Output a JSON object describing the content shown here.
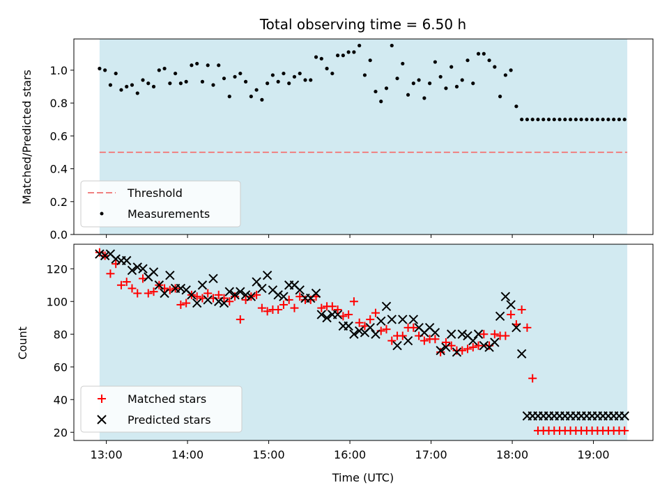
{
  "chart_data": [
    {
      "type": "scatter",
      "title": "Total observing time = 6.50 h",
      "ylabel": "Matched/Predicted stars",
      "xlabel": "",
      "xlim": [
        "12:36",
        "19:44"
      ],
      "ylim": [
        0,
        1.19
      ],
      "yticks": [
        "0.0",
        "0.2",
        "0.4",
        "0.6",
        "0.8",
        "1.0"
      ],
      "observing_window": [
        "12:55",
        "19:25"
      ],
      "observing_window_color": "#add8e6",
      "threshold": {
        "label": "Threshold",
        "value": 0.5,
        "color": "#f08080",
        "style": "dashed"
      },
      "series": [
        {
          "name": "Measurements",
          "marker": "dot",
          "color": "#000000",
          "x": [
            "12:55",
            "12:59",
            "13:03",
            "13:07",
            "13:11",
            "13:15",
            "13:19",
            "13:23",
            "13:27",
            "13:31",
            "13:35",
            "13:39",
            "13:43",
            "13:47",
            "13:51",
            "13:55",
            "13:59",
            "14:03",
            "14:07",
            "14:11",
            "14:15",
            "14:19",
            "14:23",
            "14:27",
            "14:31",
            "14:35",
            "14:39",
            "14:43",
            "14:47",
            "14:51",
            "14:55",
            "14:59",
            "15:03",
            "15:07",
            "15:11",
            "15:15",
            "15:19",
            "15:23",
            "15:27",
            "15:31",
            "15:35",
            "15:39",
            "15:43",
            "15:47",
            "15:51",
            "15:55",
            "15:59",
            "16:03",
            "16:07",
            "16:11",
            "16:15",
            "16:19",
            "16:23",
            "16:27",
            "16:31",
            "16:35",
            "16:39",
            "16:43",
            "16:47",
            "16:51",
            "16:55",
            "16:59",
            "17:03",
            "17:07",
            "17:11",
            "17:15",
            "17:19",
            "17:23",
            "17:27",
            "17:31",
            "17:35",
            "17:39",
            "17:43",
            "17:47",
            "17:51",
            "17:55",
            "17:59",
            "18:03",
            "18:07",
            "18:11",
            "18:15",
            "18:19",
            "18:23",
            "18:27",
            "18:31",
            "18:35",
            "18:39",
            "18:43",
            "18:47",
            "18:51",
            "18:55",
            "18:59",
            "19:03",
            "19:07",
            "19:11",
            "19:15",
            "19:19",
            "19:23"
          ],
          "y": [
            1.01,
            1.0,
            0.91,
            0.98,
            0.88,
            0.9,
            0.91,
            0.86,
            0.94,
            0.92,
            0.9,
            1.0,
            1.01,
            0.92,
            0.98,
            0.92,
            0.93,
            1.03,
            1.04,
            0.93,
            1.03,
            0.91,
            1.03,
            0.95,
            0.84,
            0.96,
            0.98,
            0.93,
            0.84,
            0.88,
            0.82,
            0.92,
            0.97,
            0.93,
            0.98,
            0.92,
            0.96,
            0.98,
            0.94,
            0.94,
            1.08,
            1.07,
            1.01,
            0.98,
            1.09,
            1.09,
            1.11,
            1.11,
            1.15,
            0.97,
            1.06,
            0.87,
            0.81,
            0.89,
            1.15,
            0.95,
            1.04,
            0.85,
            0.92,
            0.94,
            0.83,
            0.92,
            1.05,
            0.96,
            0.89,
            1.02,
            0.9,
            0.94,
            1.06,
            0.92,
            1.1,
            1.1,
            1.06,
            1.02,
            0.84,
            0.97,
            1.0,
            0.78,
            0.7,
            0.7,
            0.7,
            0.7,
            0.7,
            0.7,
            0.7,
            0.7,
            0.7,
            0.7,
            0.7,
            0.7,
            0.7,
            0.7,
            0.7,
            0.7,
            0.7,
            0.7,
            0.7,
            0.7
          ]
        }
      ],
      "legend": {
        "position": "lower-left",
        "entries": [
          "Threshold",
          "Measurements"
        ]
      }
    },
    {
      "type": "scatter",
      "title": "",
      "ylabel": "Count",
      "xlabel": "Time (UTC)",
      "xlim": [
        "12:36",
        "19:44"
      ],
      "ylim": [
        15,
        135
      ],
      "yticks": [
        "20",
        "40",
        "60",
        "80",
        "100",
        "120"
      ],
      "xticks": [
        "13:00",
        "14:00",
        "15:00",
        "16:00",
        "17:00",
        "18:00",
        "19:00"
      ],
      "observing_window": [
        "12:55",
        "19:25"
      ],
      "series": [
        {
          "name": "Matched stars",
          "marker": "plus",
          "color": "#ff0000",
          "x": [
            "12:55",
            "12:59",
            "13:03",
            "13:07",
            "13:11",
            "13:15",
            "13:19",
            "13:23",
            "13:27",
            "13:31",
            "13:35",
            "13:39",
            "13:43",
            "13:47",
            "13:51",
            "13:55",
            "13:59",
            "14:03",
            "14:07",
            "14:11",
            "14:15",
            "14:19",
            "14:23",
            "14:27",
            "14:31",
            "14:35",
            "14:39",
            "14:43",
            "14:47",
            "14:51",
            "14:55",
            "14:59",
            "15:03",
            "15:07",
            "15:11",
            "15:15",
            "15:19",
            "15:23",
            "15:27",
            "15:31",
            "15:35",
            "15:39",
            "15:43",
            "15:47",
            "15:51",
            "15:55",
            "15:59",
            "16:03",
            "16:07",
            "16:11",
            "16:15",
            "16:19",
            "16:23",
            "16:27",
            "16:31",
            "16:35",
            "16:39",
            "16:43",
            "16:47",
            "16:51",
            "16:55",
            "16:59",
            "17:03",
            "17:07",
            "17:11",
            "17:15",
            "17:19",
            "17:23",
            "17:27",
            "17:31",
            "17:35",
            "17:39",
            "17:43",
            "17:47",
            "17:51",
            "17:55",
            "17:59",
            "18:03",
            "18:07",
            "18:11",
            "18:15",
            "18:19",
            "18:23",
            "18:27",
            "18:31",
            "18:35",
            "18:39",
            "18:43",
            "18:47",
            "18:51",
            "18:55",
            "18:59",
            "19:03",
            "19:07",
            "19:11",
            "19:15",
            "19:19",
            "19:23"
          ],
          "y": [
            130,
            128,
            117,
            123,
            110,
            112,
            108,
            105,
            114,
            105,
            106,
            110,
            108,
            107,
            108,
            98,
            99,
            104,
            103,
            102,
            105,
            102,
            104,
            102,
            100,
            103,
            89,
            101,
            103,
            104,
            96,
            94,
            95,
            95,
            98,
            101,
            96,
            103,
            101,
            101,
            103,
            96,
            97,
            97,
            95,
            91,
            92,
            100,
            87,
            85,
            89,
            93,
            82,
            83,
            76,
            79,
            79,
            84,
            84,
            79,
            76,
            77,
            77,
            69,
            75,
            73,
            70,
            70,
            71,
            72,
            73,
            80,
            73,
            80,
            79,
            79,
            92,
            86,
            95,
            84,
            53,
            21,
            21,
            21,
            21,
            21,
            21,
            21,
            21,
            21,
            21,
            21,
            21,
            21,
            21,
            21,
            21,
            21
          ]
        },
        {
          "name": "Predicted stars",
          "marker": "x",
          "color": "#000000",
          "x": [
            "12:55",
            "12:59",
            "13:03",
            "13:07",
            "13:11",
            "13:15",
            "13:19",
            "13:23",
            "13:27",
            "13:31",
            "13:35",
            "13:39",
            "13:43",
            "13:47",
            "13:51",
            "13:55",
            "13:59",
            "14:03",
            "14:07",
            "14:11",
            "14:15",
            "14:19",
            "14:23",
            "14:27",
            "14:31",
            "14:35",
            "14:39",
            "14:43",
            "14:47",
            "14:51",
            "14:55",
            "14:59",
            "15:03",
            "15:07",
            "15:11",
            "15:15",
            "15:19",
            "15:23",
            "15:27",
            "15:31",
            "15:35",
            "15:39",
            "15:43",
            "15:47",
            "15:51",
            "15:55",
            "15:59",
            "16:03",
            "16:07",
            "16:11",
            "16:15",
            "16:19",
            "16:23",
            "16:27",
            "16:31",
            "16:35",
            "16:39",
            "16:43",
            "16:47",
            "16:51",
            "16:55",
            "16:59",
            "17:03",
            "17:07",
            "17:11",
            "17:15",
            "17:19",
            "17:23",
            "17:27",
            "17:31",
            "17:35",
            "17:39",
            "17:43",
            "17:47",
            "17:51",
            "17:55",
            "17:59",
            "18:03",
            "18:07",
            "18:11",
            "18:15",
            "18:19",
            "18:23",
            "18:27",
            "18:31",
            "18:35",
            "18:39",
            "18:43",
            "18:47",
            "18:51",
            "18:55",
            "18:59",
            "19:03",
            "19:07",
            "19:11",
            "19:15",
            "19:19",
            "19:23"
          ],
          "y": [
            129,
            128,
            129,
            126,
            125,
            125,
            119,
            121,
            120,
            115,
            118,
            110,
            105,
            116,
            108,
            108,
            107,
            104,
            99,
            110,
            101,
            114,
            100,
            99,
            106,
            104,
            106,
            104,
            103,
            112,
            108,
            116,
            107,
            104,
            103,
            110,
            110,
            107,
            102,
            102,
            105,
            92,
            90,
            92,
            92,
            85,
            85,
            80,
            82,
            81,
            84,
            80,
            88,
            97,
            89,
            73,
            89,
            76,
            89,
            84,
            81,
            84,
            81,
            70,
            72,
            80,
            69,
            80,
            79,
            76,
            80,
            73,
            72,
            75,
            91,
            103,
            98,
            84,
            68,
            30,
            30,
            30,
            30,
            30,
            30,
            30,
            30,
            30,
            30,
            30,
            30,
            30,
            30,
            30,
            30,
            30,
            30,
            30
          ]
        }
      ],
      "legend": {
        "position": "lower-left",
        "entries": [
          "Matched stars",
          "Predicted stars"
        ]
      }
    }
  ]
}
